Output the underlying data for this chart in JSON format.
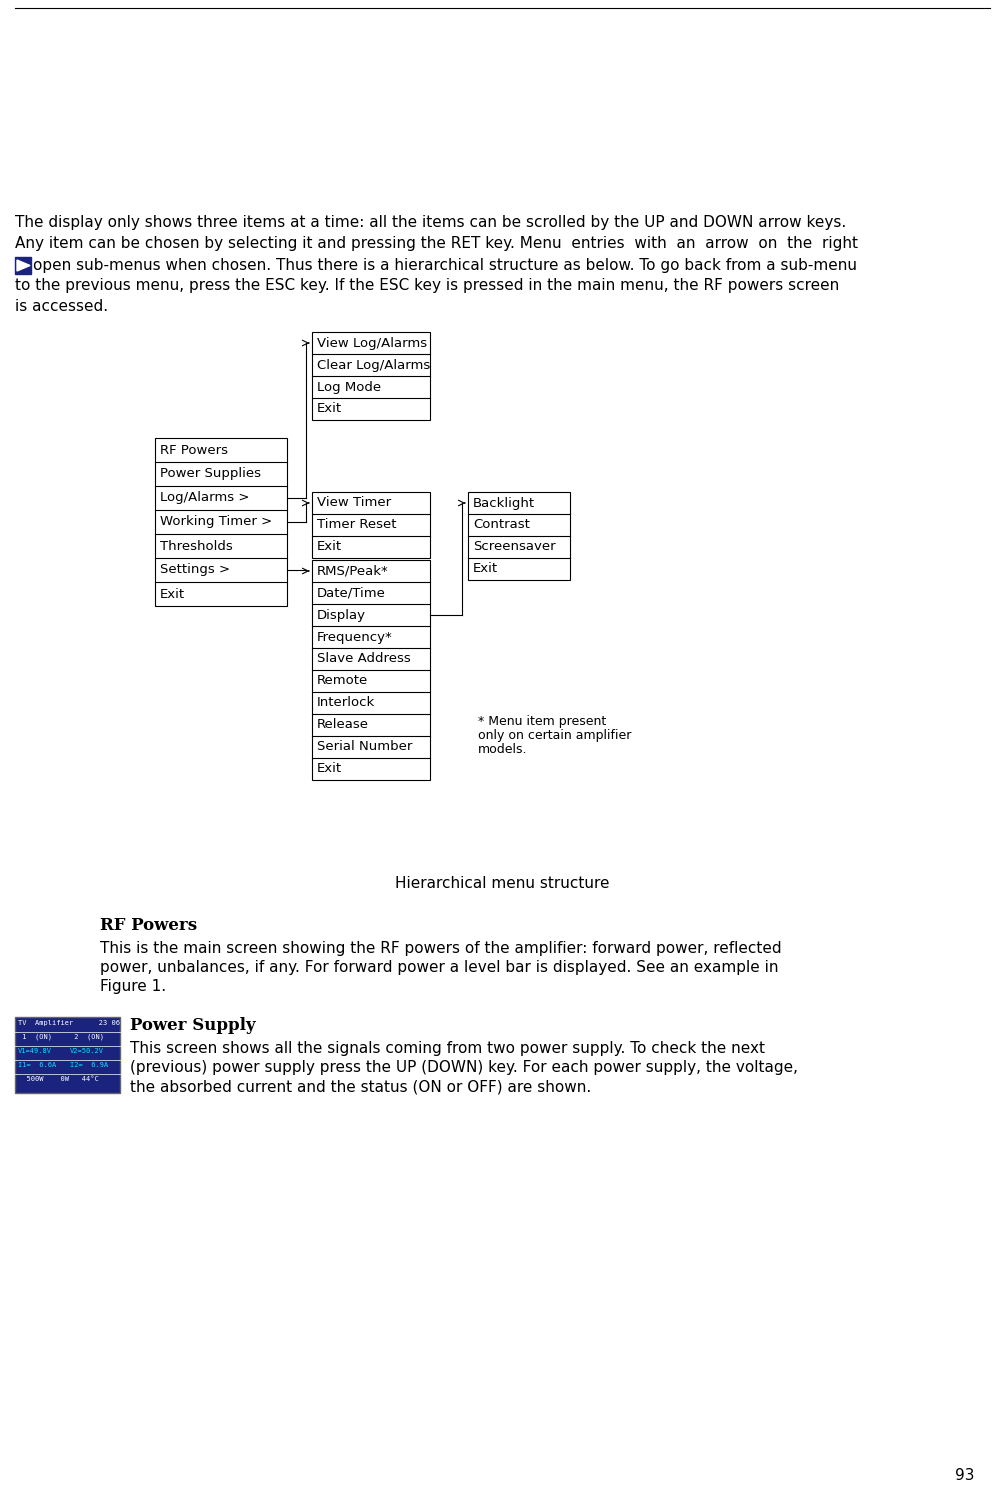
{
  "bg_color": "#ffffff",
  "text_color": "#000000",
  "page_number": "93",
  "top_text_line1": "The display only shows three items at a time: all the items can be scrolled by the UP and DOWN arrow keys.",
  "top_text_line2": "Any item can be chosen by selecting it and pressing the RET key. Menu  entries  with  an  arrow  on  the  right",
  "top_text_line3": "open sub-menus when chosen. Thus there is a hierarchical structure as below. To go back from a sub-menu",
  "top_text_line4": "to the previous menu, press the ESC key. If the ESC key is pressed in the main menu, the RF powers screen",
  "top_text_line5": "is accessed.",
  "main_menu": [
    "RF Powers",
    "Power Supplies",
    "Log/Alarms >",
    "Working Timer >",
    "Thresholds",
    "Settings >",
    "Exit"
  ],
  "log_alarms_menu": [
    "View Log/Alarms",
    "Clear Log/Alarms",
    "Log Mode",
    "Exit"
  ],
  "working_timer_menu": [
    "View Timer",
    "Timer Reset",
    "Exit"
  ],
  "settings_menu": [
    "RMS/Peak*",
    "Date/Time",
    "Display",
    "Frequency*",
    "Slave Address",
    "Remote",
    "Interlock",
    "Release",
    "Serial Number",
    "Exit"
  ],
  "display_menu": [
    "Backlight",
    "Contrast",
    "Screensaver",
    "Exit"
  ],
  "footnote_line1": "* Menu item present",
  "footnote_line2": "only on certain amplifier",
  "footnote_line3": "models.",
  "caption": "Hierarchical menu structure",
  "rf_powers_title": "RF Powers",
  "rf_powers_line1": "This is the main screen showing the RF powers of the amplifier: forward power, reflected",
  "rf_powers_line2": "power, unbalances, if any. For forward power a level bar is displayed. See an example in",
  "rf_powers_line3": "Figure 1.",
  "power_supply_title": "Power Supply",
  "power_supply_line1": "This screen shows all the signals coming from two power supply. To check the next",
  "power_supply_line2": "(previous) power supply press the UP (DOWN) key. For each power supply, the voltage,",
  "power_supply_line3": "the absorbed current and the status (ON or OFF) are shown.",
  "lcd_line1": "TV  Amplifier      23 06",
  "lcd_line2a": " 1  (ON)",
  "lcd_line2b": " 2  (ON)",
  "lcd_line3a": "V1=49.8V",
  "lcd_line3b": "V2=50.2V",
  "lcd_line4a": "I1=  6.6A",
  "lcd_line4b": "I2=  6.9A",
  "lcd_line5": "  500W    0W   44°C",
  "lcd_bg": "#1a237e",
  "lcd_text_white": "#ffffff",
  "lcd_text_cyan": "#00e5ff",
  "arrow_blue_color": "#1a237e"
}
